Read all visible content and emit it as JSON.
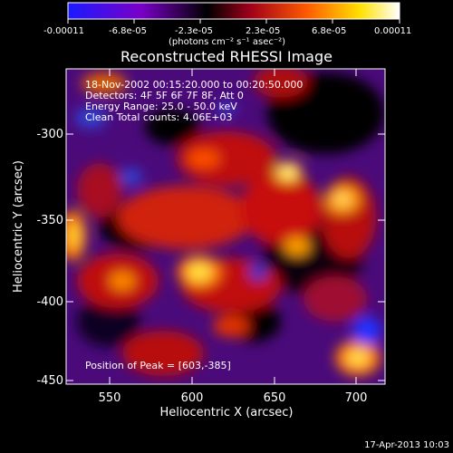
{
  "colorbar": {
    "tick_labels": [
      "-0.00011",
      "-6.8e-05",
      "-2.3e-05",
      "2.3e-05",
      "6.8e-05",
      "0.00011"
    ],
    "unit_label": "(photons cm⁻² s⁻¹ asec⁻²)",
    "colors": [
      "#1a1aff",
      "#7a00c8",
      "#000000",
      "#a0001a",
      "#ff5a00",
      "#ffe000",
      "#ffffff"
    ]
  },
  "title": "Reconstructed RHESSI Image",
  "info": {
    "line1": "18-Nov-2002 00:15:20.000 to 00:20:50.000",
    "line2": "Detectors: 4F 5F 6F 7F 8F, Att 0",
    "line3": "Energy Range: 25.0 - 50.0 keV",
    "line4": "Clean     Total counts: 4.06E+03"
  },
  "peak_label": "Position of Peak = [603,-385]",
  "axes": {
    "xlabel": "Heliocentric X (arcsec)",
    "ylabel": "Heliocentric Y (arcsec)",
    "x_ticks": [
      "550",
      "600",
      "650",
      "700"
    ],
    "y_ticks": [
      "-300",
      "-350",
      "-400",
      "-450"
    ]
  },
  "footer_date": "17-Apr-2013 10:03"
}
